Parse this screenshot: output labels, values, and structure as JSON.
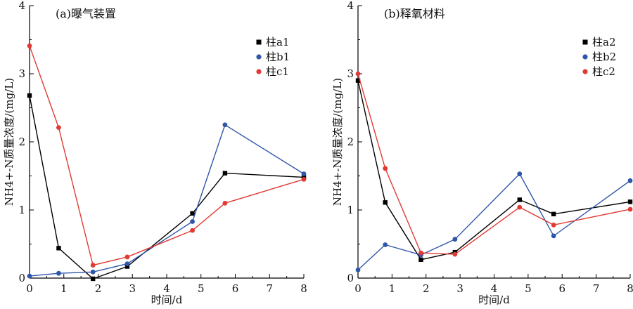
{
  "chart_data": [
    {
      "type": "line",
      "title": "(a)曝气装置",
      "xlabel": "时间/d",
      "ylabel": "NH4+-N质量浓度/(mg/L)",
      "xlim": [
        0,
        8
      ],
      "ylim": [
        0,
        4
      ],
      "x_ticks": [
        "0",
        "1",
        "2",
        "3",
        "4",
        "5",
        "6",
        "7",
        "8"
      ],
      "y_ticks": [
        "0",
        "1",
        "2",
        "3",
        "4"
      ],
      "grid": false,
      "legend_position": "top-right",
      "series": [
        {
          "name": "柱a1",
          "marker": "square",
          "color": "#000000",
          "points": [
            [
              0,
              2.68
            ],
            [
              0.85,
              0.44
            ],
            [
              1.85,
              -0.01
            ],
            [
              2.85,
              0.17
            ],
            [
              4.75,
              0.95
            ],
            [
              5.7,
              1.54
            ],
            [
              8,
              1.48
            ]
          ]
        },
        {
          "name": "柱b1",
          "marker": "circle",
          "color": "#2f56a8",
          "points": [
            [
              0,
              0.03
            ],
            [
              0.85,
              0.07
            ],
            [
              1.85,
              0.09
            ],
            [
              2.85,
              0.21
            ],
            [
              4.75,
              0.83
            ],
            [
              5.7,
              2.25
            ],
            [
              8,
              1.53
            ]
          ]
        },
        {
          "name": "柱c1",
          "marker": "circle",
          "color": "#e03a35",
          "points": [
            [
              0,
              3.41
            ],
            [
              0.85,
              2.21
            ],
            [
              1.85,
              0.19
            ],
            [
              2.85,
              0.31
            ],
            [
              4.75,
              0.7
            ],
            [
              5.7,
              1.1
            ],
            [
              8,
              1.45
            ]
          ]
        }
      ]
    },
    {
      "type": "line",
      "title": "(b)释氧材料",
      "xlabel": "时间/d",
      "ylabel": "NH4+-N质量浓度/(mg/L)",
      "xlim": [
        0,
        8
      ],
      "ylim": [
        0,
        4
      ],
      "x_ticks": [
        "0",
        "1",
        "2",
        "3",
        "4",
        "5",
        "6",
        "7",
        "8"
      ],
      "y_ticks": [
        "0",
        "1",
        "2",
        "3",
        "4"
      ],
      "grid": false,
      "legend_position": "top-right",
      "series": [
        {
          "name": "柱a2",
          "marker": "square",
          "color": "#000000",
          "points": [
            [
              0,
              2.9
            ],
            [
              0.8,
              1.11
            ],
            [
              1.85,
              0.27
            ],
            [
              2.85,
              0.38
            ],
            [
              4.75,
              1.15
            ],
            [
              5.75,
              0.94
            ],
            [
              8,
              1.12
            ]
          ]
        },
        {
          "name": "柱b2",
          "marker": "circle",
          "color": "#2f56a8",
          "points": [
            [
              0,
              0.12
            ],
            [
              0.8,
              0.49
            ],
            [
              1.85,
              0.34
            ],
            [
              2.85,
              0.57
            ],
            [
              4.75,
              1.53
            ],
            [
              5.75,
              0.62
            ],
            [
              8,
              1.43
            ]
          ]
        },
        {
          "name": "柱c2",
          "marker": "circle",
          "color": "#e03a35",
          "points": [
            [
              0,
              3.0
            ],
            [
              0.8,
              1.61
            ],
            [
              1.85,
              0.37
            ],
            [
              2.85,
              0.35
            ],
            [
              4.75,
              1.04
            ],
            [
              5.75,
              0.78
            ],
            [
              8,
              1.01
            ]
          ]
        }
      ]
    }
  ]
}
